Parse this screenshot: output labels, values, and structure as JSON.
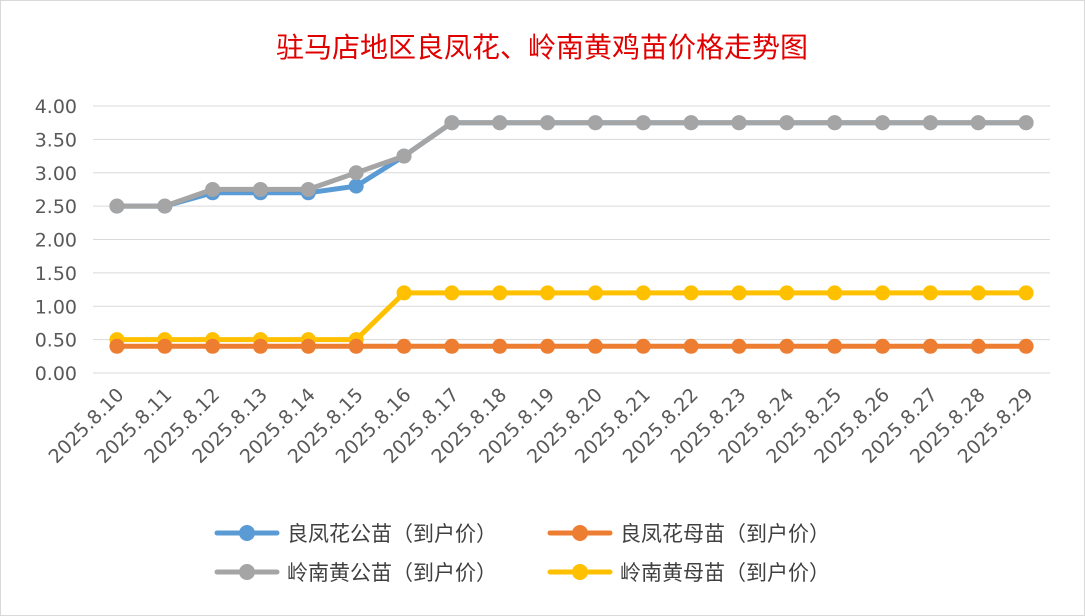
{
  "chart_data": {
    "type": "line",
    "title": "驻马店地区良凤花、岭南黄鸡苗价格走势图",
    "xlabel": "",
    "ylabel": "",
    "ylim": [
      0,
      4
    ],
    "y_ticks": [
      "0.00",
      "0.50",
      "1.00",
      "1.50",
      "2.00",
      "2.50",
      "3.00",
      "3.50",
      "4.00"
    ],
    "grid": true,
    "legend_position": "bottom",
    "categories": [
      "2025.8.10",
      "2025.8.11",
      "2025.8.12",
      "2025.8.13",
      "2025.8.14",
      "2025.8.15",
      "2025.8.16",
      "2025.8.17",
      "2025.8.18",
      "2025.8.19",
      "2025.8.20",
      "2025.8.21",
      "2025.8.22",
      "2025.8.23",
      "2025.8.24",
      "2025.8.25",
      "2025.8.26",
      "2025.8.27",
      "2025.8.28",
      "2025.8.29"
    ],
    "series": [
      {
        "name": "良凤花公苗（到户价）",
        "color": "#5b9bd5",
        "values": [
          2.5,
          2.5,
          2.7,
          2.7,
          2.7,
          2.8,
          3.25,
          3.75,
          3.75,
          3.75,
          3.75,
          3.75,
          3.75,
          3.75,
          3.75,
          3.75,
          3.75,
          3.75,
          3.75,
          3.75
        ]
      },
      {
        "name": "良凤花母苗（到户价）",
        "color": "#ed7d31",
        "values": [
          0.4,
          0.4,
          0.4,
          0.4,
          0.4,
          0.4,
          0.4,
          0.4,
          0.4,
          0.4,
          0.4,
          0.4,
          0.4,
          0.4,
          0.4,
          0.4,
          0.4,
          0.4,
          0.4,
          0.4
        ]
      },
      {
        "name": "岭南黄公苗（到户价）",
        "color": "#a5a5a5",
        "values": [
          2.5,
          2.5,
          2.75,
          2.75,
          2.75,
          3.0,
          3.25,
          3.75,
          3.75,
          3.75,
          3.75,
          3.75,
          3.75,
          3.75,
          3.75,
          3.75,
          3.75,
          3.75,
          3.75,
          3.75
        ]
      },
      {
        "name": "岭南黄母苗（到户价）",
        "color": "#ffc000",
        "values": [
          0.5,
          0.5,
          0.5,
          0.5,
          0.5,
          0.5,
          1.2,
          1.2,
          1.2,
          1.2,
          1.2,
          1.2,
          1.2,
          1.2,
          1.2,
          1.2,
          1.2,
          1.2,
          1.2,
          1.2
        ]
      }
    ]
  }
}
